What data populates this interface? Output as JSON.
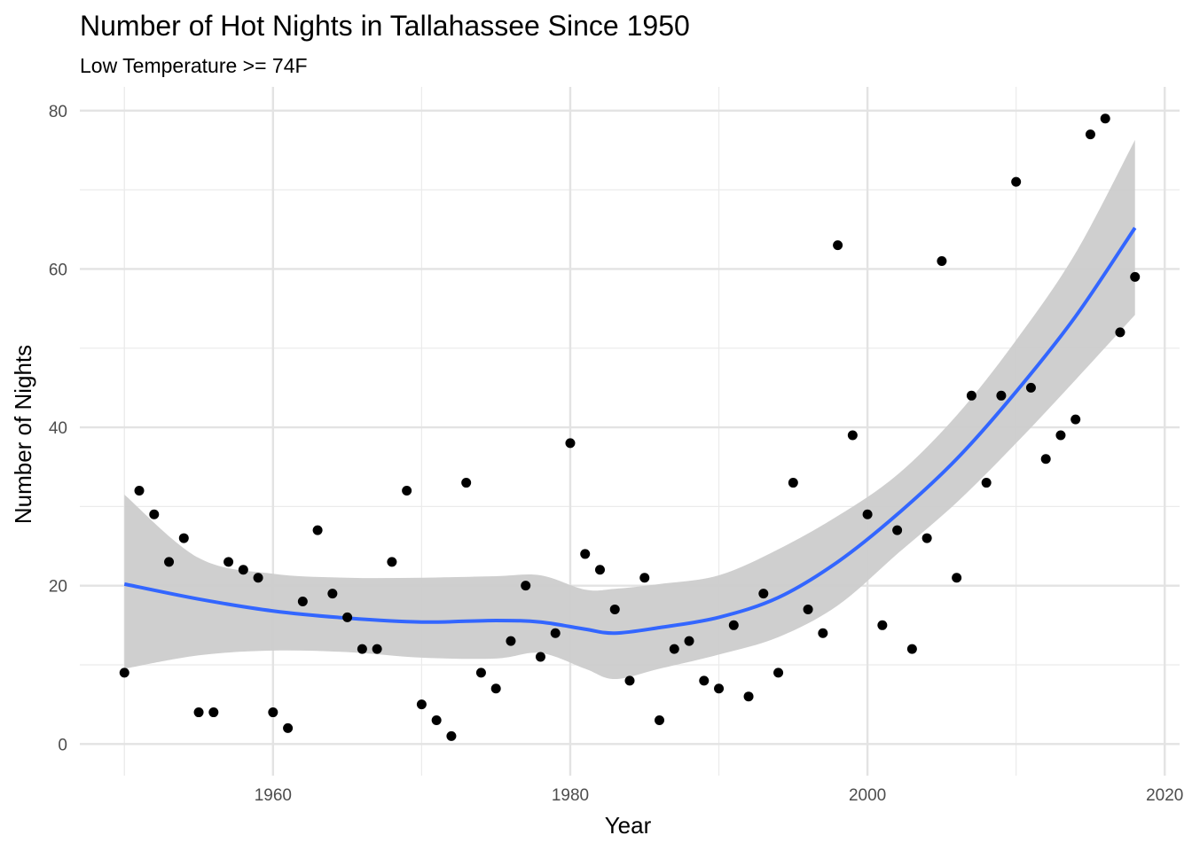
{
  "chart_data": {
    "type": "scatter",
    "title": "Number of Hot Nights in Tallahassee Since 1950",
    "subtitle": "Low Temperature >= 74F",
    "xlabel": "Year",
    "ylabel": "Number of Nights",
    "xlim": [
      1947,
      2021
    ],
    "ylim": [
      -4,
      83
    ],
    "x_ticks": [
      1960,
      1980,
      2000,
      2020
    ],
    "y_ticks": [
      0,
      20,
      40,
      60,
      80
    ],
    "x_tick_labels": [
      "1960",
      "1980",
      "2000",
      "2020"
    ],
    "y_tick_labels": [
      "0",
      "20",
      "40",
      "60",
      "80"
    ],
    "grid": true,
    "legend": "none",
    "point_color": "#000000",
    "smooth_color": "#3366ff",
    "band_color": "#cccccc",
    "points": [
      [
        1950,
        9
      ],
      [
        1951,
        32
      ],
      [
        1952,
        29
      ],
      [
        1953,
        23
      ],
      [
        1954,
        26
      ],
      [
        1955,
        4
      ],
      [
        1956,
        4
      ],
      [
        1957,
        23
      ],
      [
        1958,
        22
      ],
      [
        1959,
        21
      ],
      [
        1960,
        4
      ],
      [
        1961,
        2
      ],
      [
        1962,
        18
      ],
      [
        1963,
        27
      ],
      [
        1964,
        19
      ],
      [
        1965,
        16
      ],
      [
        1966,
        12
      ],
      [
        1967,
        12
      ],
      [
        1968,
        23
      ],
      [
        1969,
        32
      ],
      [
        1970,
        5
      ],
      [
        1971,
        3
      ],
      [
        1972,
        1
      ],
      [
        1973,
        33
      ],
      [
        1974,
        9
      ],
      [
        1975,
        7
      ],
      [
        1976,
        13
      ],
      [
        1977,
        20
      ],
      [
        1978,
        11
      ],
      [
        1979,
        14
      ],
      [
        1980,
        38
      ],
      [
        1981,
        24
      ],
      [
        1982,
        22
      ],
      [
        1983,
        17
      ],
      [
        1984,
        8
      ],
      [
        1985,
        21
      ],
      [
        1986,
        3
      ],
      [
        1987,
        12
      ],
      [
        1988,
        13
      ],
      [
        1989,
        8
      ],
      [
        1990,
        7
      ],
      [
        1991,
        15
      ],
      [
        1992,
        6
      ],
      [
        1993,
        19
      ],
      [
        1994,
        9
      ],
      [
        1995,
        33
      ],
      [
        1996,
        17
      ],
      [
        1997,
        14
      ],
      [
        1998,
        63
      ],
      [
        1999,
        39
      ],
      [
        2000,
        29
      ],
      [
        2001,
        15
      ],
      [
        2002,
        27
      ],
      [
        2003,
        12
      ],
      [
        2004,
        26
      ],
      [
        2005,
        61
      ],
      [
        2006,
        21
      ],
      [
        2007,
        44
      ],
      [
        2008,
        33
      ],
      [
        2009,
        44
      ],
      [
        2010,
        71
      ],
      [
        2011,
        45
      ],
      [
        2012,
        36
      ],
      [
        2013,
        39
      ],
      [
        2014,
        41
      ],
      [
        2015,
        77
      ],
      [
        2016,
        79
      ],
      [
        2017,
        52
      ],
      [
        2018,
        59
      ]
    ],
    "smooth": {
      "x": [
        1950,
        1955,
        1960,
        1965,
        1970,
        1975,
        1978,
        1981,
        1983,
        1986,
        1990,
        1994,
        1998,
        2002,
        2006,
        2010,
        2014,
        2018
      ],
      "y": [
        20.2,
        18.3,
        16.8,
        15.9,
        15.4,
        15.6,
        15.4,
        14.5,
        14.0,
        14.7,
        16.0,
        18.5,
        23.0,
        29.0,
        36.0,
        44.5,
        54.0,
        65.2
      ],
      "lower": [
        9.5,
        11.2,
        11.8,
        11.6,
        10.9,
        10.8,
        11.5,
        9.5,
        8.2,
        9.5,
        11.3,
        13.5,
        17.5,
        24.0,
        30.5,
        38.0,
        46.0,
        54.2
      ],
      "upper": [
        31.5,
        23.5,
        21.5,
        21.0,
        21.0,
        21.2,
        21.3,
        19.5,
        19.6,
        20.2,
        21.3,
        24.6,
        28.8,
        34.0,
        41.5,
        51.0,
        62.0,
        76.3
      ]
    }
  }
}
